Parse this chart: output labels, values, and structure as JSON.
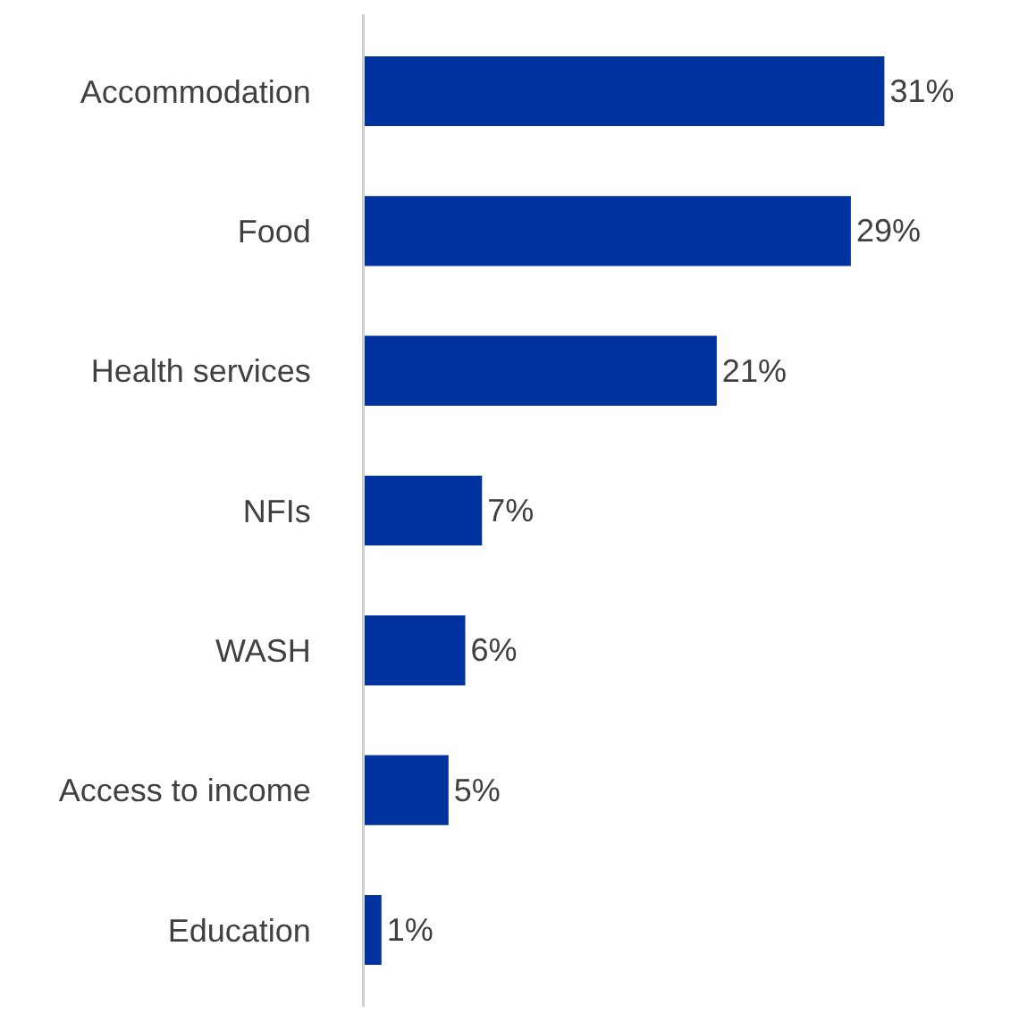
{
  "chart_data": {
    "type": "bar",
    "orientation": "horizontal",
    "categories": [
      "Accommodation",
      "Food",
      "Health services",
      "NFIs",
      "WASH",
      "Access to income",
      "Education"
    ],
    "values": [
      31,
      29,
      21,
      7,
      6,
      5,
      1
    ],
    "value_labels": [
      "31%",
      "29%",
      "21%",
      "7%",
      "6%",
      "5%",
      "1%"
    ],
    "color": "#0033a0",
    "grid": false,
    "legend": false
  }
}
